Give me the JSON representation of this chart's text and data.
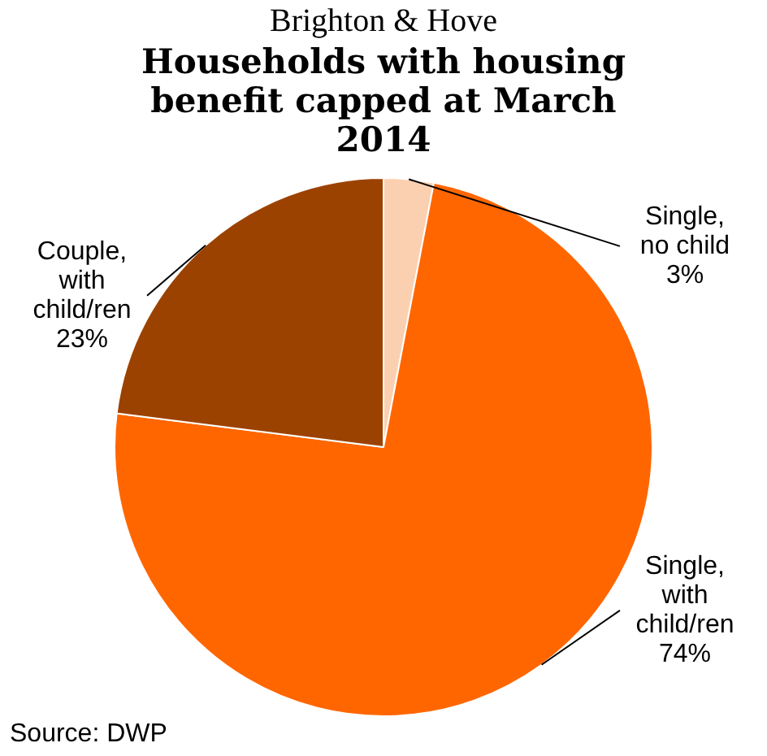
{
  "chart_data": {
    "type": "pie",
    "title": "Brighton & Hove",
    "subtitle": "Households with housing benefit capped at March 2014",
    "categories": [
      "Single, no child",
      "Single, with child/ren",
      "Couple, with child/ren"
    ],
    "values": [
      3,
      74,
      23
    ],
    "value_labels": [
      "3%",
      "74%",
      "23%"
    ],
    "colors": [
      "#fbd0b0",
      "#ff6600",
      "#9c4200"
    ],
    "annotations": [
      "Source: DWP"
    ]
  }
}
